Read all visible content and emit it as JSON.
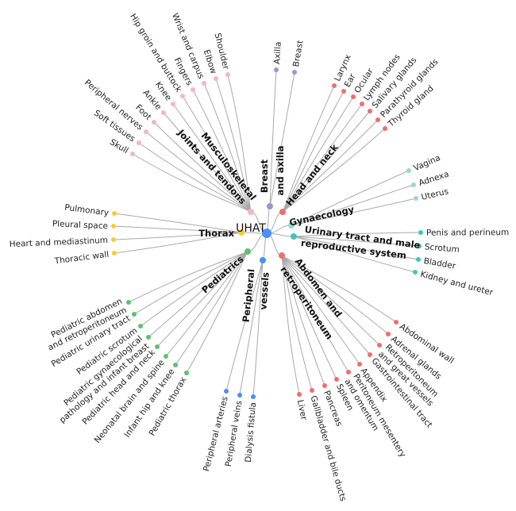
{
  "root": {
    "label": "UHAT",
    "color": "#4a8ff7"
  },
  "branches": [
    {
      "id": "msk",
      "label_lines": [
        "Musculoskeletal",
        "Joints and tendons"
      ],
      "color": "#f6b3cb",
      "leaves": [
        "Skull",
        "Soft tissues",
        "Peripheral nerves",
        "Foot",
        "Ankle",
        "Knee",
        "Hip groin and buttock",
        "Fingers",
        "Wrist and carpus",
        "Elbow",
        "Shoulder"
      ]
    },
    {
      "id": "breast",
      "label_lines": [
        "Breast",
        "and axilla"
      ],
      "color": "#a38fd9",
      "leaves": [
        "Axilla",
        "Breast"
      ]
    },
    {
      "id": "headneck",
      "label_lines": [
        "Head and neck"
      ],
      "color": "#f26d6d",
      "leaves": [
        "Larynx",
        "Ear",
        "Ocular",
        "Lymph nodes",
        "Salivary glands",
        "Parathyroid glands",
        "Thyroid gland"
      ]
    },
    {
      "id": "gyn",
      "label_lines": [
        "Gynaecology"
      ],
      "color": "#93dccb",
      "leaves": [
        "Vagina",
        "Adnexa",
        "Uterus"
      ]
    },
    {
      "id": "uro",
      "label_lines": [
        "Urinary tract and male",
        "reproductive system"
      ],
      "color": "#3ec6bc",
      "leaves": [
        "Penis and perineum",
        "Scrotum",
        "Bladder",
        "Kidney and ureter"
      ]
    },
    {
      "id": "abd",
      "label_lines": [
        "Abdomen and",
        "retroperitoneum"
      ],
      "color": "#f26d6d",
      "leaves": [
        "Abdominal wall",
        "Adrenal glands",
        "Retroperitoneum\nand great vessels",
        "Gastrointestinal tract",
        "Appendix",
        "Peritoneum mesentery\nand omentum",
        "Spleen",
        "Pancreas",
        "Gallbladder and bile ducts",
        "Liver"
      ]
    },
    {
      "id": "vessels",
      "label_lines": [
        "Peripheral",
        "vessels"
      ],
      "color": "#4a8ff7",
      "leaves": [
        "Peripheral arteries",
        "Peripheral veins",
        "Dialysis fistula"
      ]
    },
    {
      "id": "peds",
      "label_lines": [
        "Pediatrics"
      ],
      "color": "#5ec26c",
      "leaves": [
        "Pediatric abdomen\nand retroperitoneum",
        "Pediatric urinary tract",
        "Pediatric scrotum",
        "Pediatric gynaecological\npathology and infant breast",
        "Pediatric head and neck",
        "Neonatal brain and spine",
        "Infant hip and knee",
        "Pediatric thorax"
      ]
    },
    {
      "id": "thorax",
      "label_lines": [
        "Thorax"
      ],
      "color": "#f8cb33",
      "leaves": [
        "Pulmonary",
        "Pleural space",
        "Heart and mediastinum",
        "Thoracic wall"
      ]
    }
  ]
}
